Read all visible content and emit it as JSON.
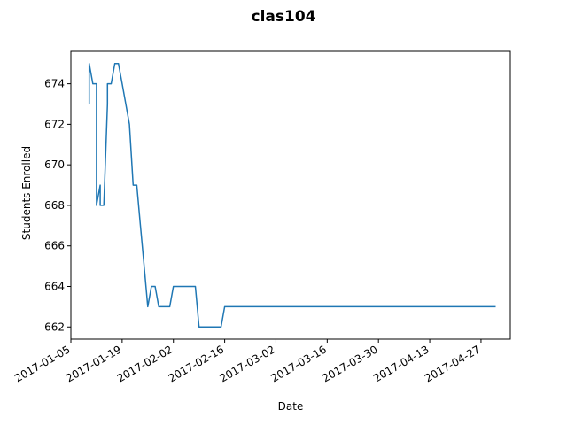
{
  "chart_data": {
    "type": "line",
    "title": "clas104",
    "xlabel": "Date",
    "ylabel": "Students Enrolled",
    "x_ticks": [
      "2017-01-05",
      "2017-01-19",
      "2017-02-02",
      "2017-02-16",
      "2017-03-02",
      "2017-03-16",
      "2017-03-30",
      "2017-04-13",
      "2017-04-27"
    ],
    "y_ticks": [
      662,
      664,
      666,
      668,
      670,
      672,
      674
    ],
    "xlim": [
      "2017-01-05",
      "2017-05-05"
    ],
    "ylim": [
      661.4,
      675.6
    ],
    "grid": false,
    "legend": "none",
    "series": [
      {
        "color": "#1f77b4",
        "points": [
          [
            "2017-01-10",
            673
          ],
          [
            "2017-01-10",
            675
          ],
          [
            "2017-01-11",
            674
          ],
          [
            "2017-01-12",
            674
          ],
          [
            "2017-01-12",
            668
          ],
          [
            "2017-01-13",
            669
          ],
          [
            "2017-01-13",
            668
          ],
          [
            "2017-01-14",
            668
          ],
          [
            "2017-01-15",
            673
          ],
          [
            "2017-01-15",
            674
          ],
          [
            "2017-01-16",
            674
          ],
          [
            "2017-01-17",
            675
          ],
          [
            "2017-01-18",
            675
          ],
          [
            "2017-01-19",
            674
          ],
          [
            "2017-01-20",
            673
          ],
          [
            "2017-01-21",
            672
          ],
          [
            "2017-01-22",
            669
          ],
          [
            "2017-01-23",
            669
          ],
          [
            "2017-01-24",
            667
          ],
          [
            "2017-01-25",
            665
          ],
          [
            "2017-01-26",
            663
          ],
          [
            "2017-01-27",
            664
          ],
          [
            "2017-01-28",
            664
          ],
          [
            "2017-01-29",
            663
          ],
          [
            "2017-02-01",
            663
          ],
          [
            "2017-02-02",
            664
          ],
          [
            "2017-02-08",
            664
          ],
          [
            "2017-02-09",
            662
          ],
          [
            "2017-02-15",
            662
          ],
          [
            "2017-02-16",
            663
          ],
          [
            "2017-05-01",
            663
          ]
        ]
      }
    ]
  }
}
